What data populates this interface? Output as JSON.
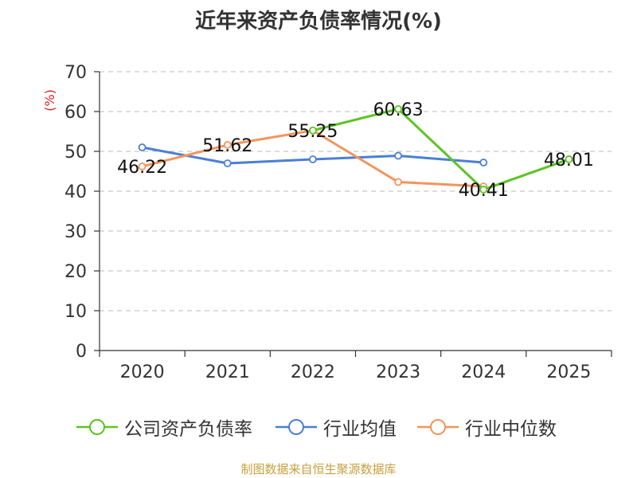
{
  "chart_data": {
    "type": "line",
    "title": "近年来资产负债率情况(%)",
    "ylabel": "(%)",
    "categories": [
      "2020",
      "2021",
      "2022",
      "2023",
      "2024",
      "2025"
    ],
    "ylim": [
      0,
      70
    ],
    "yticks": [
      0,
      10,
      20,
      30,
      40,
      50,
      60,
      70
    ],
    "grid": true,
    "legend_position": "bottom",
    "series": [
      {
        "name": "公司资产负债率",
        "color": "#5cc323",
        "values": [
          null,
          null,
          55.25,
          60.63,
          40.41,
          48.01
        ],
        "labels": [
          "",
          "",
          "",
          "60.63",
          "40.41",
          "48.01"
        ]
      },
      {
        "name": "行业均值",
        "color": "#4a7fd6",
        "values": [
          51.0,
          47.0,
          48.0,
          48.9,
          47.2,
          null
        ],
        "labels": [
          "",
          "",
          "",
          "",
          "",
          ""
        ]
      },
      {
        "name": "行业中位数",
        "color": "#f4945c",
        "values": [
          46.22,
          51.62,
          55.25,
          42.3,
          41.2,
          null
        ],
        "labels": [
          "46.22",
          "51.62",
          "55.25",
          "",
          "",
          ""
        ]
      }
    ]
  },
  "footer": {
    "source": "制图数据来自恒生聚源数据库"
  }
}
